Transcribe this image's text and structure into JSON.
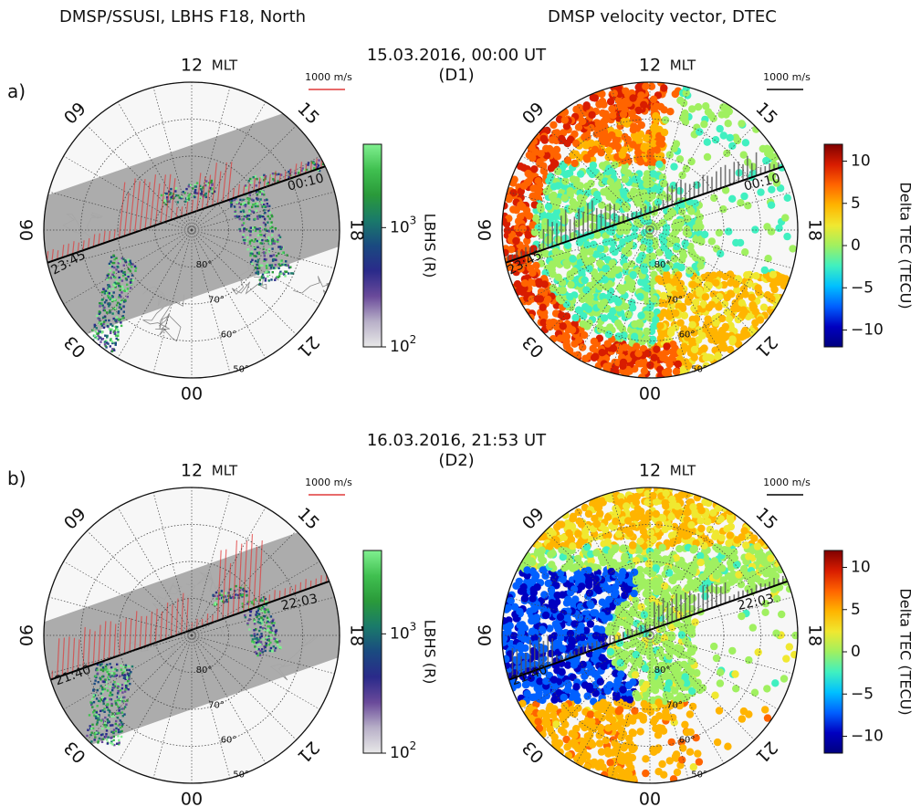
{
  "header": {
    "left_title": "DMSP/SSUSI, LBHS F18, North",
    "right_title": "DMSP velocity vector, DTEC"
  },
  "colors": {
    "velocity_red": "#e03a3a",
    "velocity_black": "#000000",
    "track_gray": "#a8a8a8",
    "plot_bg": "#f7f7f7"
  },
  "panels": [
    {
      "letter": "a)",
      "timestamp": "15.03.2016, 00:00 UT",
      "event": "(D1)",
      "track_start_label": "23:45",
      "track_end_label": "00:10"
    },
    {
      "letter": "b)",
      "timestamp": "16.03.2016, 21:53 UT",
      "event": "(D2)",
      "track_start_label": "21:40",
      "track_end_label": "22:03"
    }
  ],
  "polar": {
    "mlt_labels": [
      {
        "text": "12",
        "unit": "MLT",
        "mlt": 12
      },
      {
        "text": "15",
        "mlt": 15
      },
      {
        "text": "18",
        "mlt": 18
      },
      {
        "text": "21",
        "mlt": 21
      },
      {
        "text": "00",
        "mlt": 0
      },
      {
        "text": "03",
        "mlt": 3
      },
      {
        "text": "06",
        "mlt": 6
      },
      {
        "text": "09",
        "mlt": 9
      }
    ],
    "lat_labels": [
      "50°",
      "60°",
      "70°",
      "80°"
    ],
    "lat_rings": [
      50,
      60,
      70,
      80
    ],
    "lat_min": 50,
    "scale_label": "1000 m/s"
  },
  "colorbars": {
    "lbhs": {
      "label": "LBHS (R)",
      "scale": "log",
      "range": [
        100,
        5000
      ],
      "ticks": [
        {
          "base": "10",
          "exp": "2",
          "value": 100
        },
        {
          "base": "10",
          "exp": "3",
          "value": 1000
        }
      ],
      "colors": [
        "#e8e8e8",
        "#b8b0c8",
        "#6a4a9a",
        "#2a2a8a",
        "#1a4a80",
        "#1a7a6a",
        "#2a9a3a",
        "#40c050",
        "#80f090"
      ]
    },
    "dtec": {
      "label": "Delta TEC (TECU)",
      "range": [
        -12,
        12
      ],
      "ticks": [
        {
          "text": "10",
          "value": 10
        },
        {
          "text": "5",
          "value": 5
        },
        {
          "text": "0",
          "value": 0
        },
        {
          "text": "−5",
          "value": -5
        },
        {
          "text": "−10",
          "value": -10
        }
      ],
      "colors": [
        "#7f0000",
        "#d81c00",
        "#ff6400",
        "#ffb400",
        "#f0e830",
        "#a0f060",
        "#40f0c0",
        "#00c0ff",
        "#0060ff",
        "#0000c0",
        "#00007f"
      ]
    }
  }
}
